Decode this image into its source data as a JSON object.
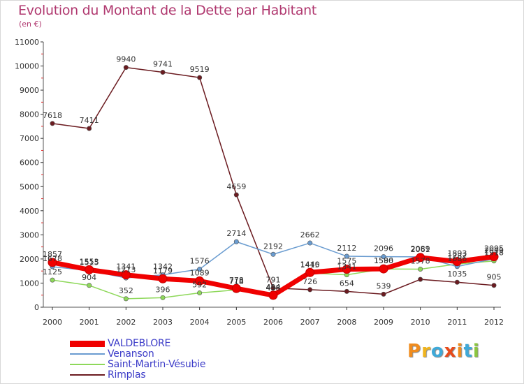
{
  "title": "Evolution du Montant de la Dette par Habitant",
  "unit_label": "(en €)",
  "logo": {
    "text": "Proxiti",
    "colors": [
      "#f08c1e",
      "#f0b41e",
      "#3fa9d8",
      "#e84a1a",
      "#f08c1e",
      "#3fa9d8",
      "#8cc63f"
    ]
  },
  "chart_data": {
    "type": "line",
    "x": [
      "2000",
      "2001",
      "2002",
      "2003",
      "2004",
      "2005",
      "2006",
      "2007",
      "2008",
      "2009",
      "2010",
      "2011",
      "2012"
    ],
    "ylim": [
      0,
      11000
    ],
    "yticks": [
      "0",
      "1000",
      "2000",
      "3000",
      "4000",
      "5000",
      "6000",
      "7000",
      "8000",
      "9000",
      "10000",
      "11000"
    ],
    "grid": false,
    "legend_position": "bottom-left",
    "series": [
      {
        "name": "Rimplas",
        "color": "#6b1b20",
        "values": [
          7618,
          7411,
          9940,
          9741,
          9519,
          4659,
          791,
          726,
          654,
          539,
          1154,
          1035,
          905
        ],
        "labels": [
          "7618",
          "7411",
          "9940",
          "9741",
          "9519",
          "4659",
          "791",
          "726",
          "654",
          "539",
          "",
          "1035",
          "905"
        ]
      },
      {
        "name": "Saint-Martin-Vésubie",
        "color": "#8ed85a",
        "values": [
          1125,
          904,
          352,
          396,
          592,
          718,
          458,
          1415,
          1341,
          1586,
          1578,
          1787,
          1918
        ],
        "labels": [
          "1125",
          "904",
          "352",
          "396",
          "592",
          "718",
          "458",
          "1415",
          "1341",
          "1586",
          "1578",
          "1787",
          "1918"
        ]
      },
      {
        "name": "Venanson",
        "color": "#6a9cd0",
        "values": [
          1678,
          1515,
          1213,
          1342,
          1576,
          2714,
          2192,
          2662,
          2112,
          2096,
          2089,
          1686,
          2009
        ],
        "labels": [
          "1678",
          "1515",
          "1213",
          "1342",
          "1576",
          "2714",
          "2192",
          "2662",
          "2112",
          "2096",
          "2089",
          "1686",
          "2009"
        ]
      },
      {
        "name": "VALDEBLORE",
        "color": "#f00000",
        "values": [
          1857,
          1553,
          1341,
          1179,
          1089,
          778,
          494,
          1440,
          1575,
          1590,
          2061,
          1893,
          2095
        ],
        "labels": [
          "1857",
          "1553",
          "1341",
          "1179",
          "1089",
          "778",
          "494",
          "1440",
          "1575",
          "1590",
          "2061",
          "1893",
          "2095"
        ]
      }
    ]
  },
  "legend": [
    {
      "label": "VALDEBLORE",
      "color": "#f00000"
    },
    {
      "label": "Venanson",
      "color": "#6a9cd0"
    },
    {
      "label": "Saint-Martin-Vésubie",
      "color": "#8ed85a"
    },
    {
      "label": "Rimplas",
      "color": "#6b1b20"
    }
  ]
}
